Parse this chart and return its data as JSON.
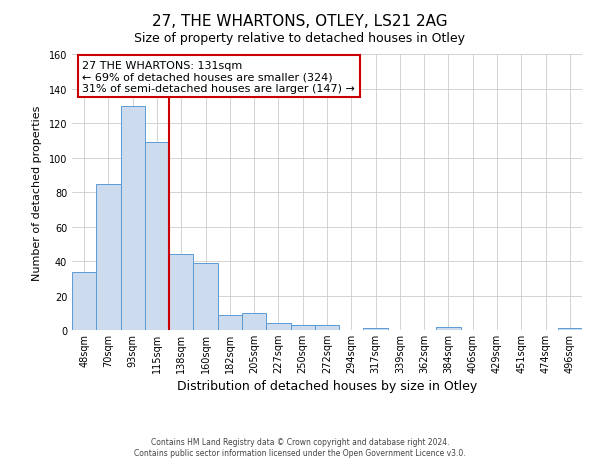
{
  "title": "27, THE WHARTONS, OTLEY, LS21 2AG",
  "subtitle": "Size of property relative to detached houses in Otley",
  "xlabel": "Distribution of detached houses by size in Otley",
  "ylabel": "Number of detached properties",
  "bin_labels": [
    "48sqm",
    "70sqm",
    "93sqm",
    "115sqm",
    "138sqm",
    "160sqm",
    "182sqm",
    "205sqm",
    "227sqm",
    "250sqm",
    "272sqm",
    "294sqm",
    "317sqm",
    "339sqm",
    "362sqm",
    "384sqm",
    "406sqm",
    "429sqm",
    "451sqm",
    "474sqm",
    "496sqm"
  ],
  "bar_values": [
    34,
    85,
    130,
    109,
    44,
    39,
    9,
    10,
    4,
    3,
    3,
    0,
    1,
    0,
    0,
    2,
    0,
    0,
    0,
    0,
    1
  ],
  "bar_color": "#ccdcee",
  "bar_edge_color": "#5b9bd5",
  "property_line_label": "27 THE WHARTONS: 131sqm",
  "annotation_line1": "← 69% of detached houses are smaller (324)",
  "annotation_line2": "31% of semi-detached houses are larger (147) →",
  "annotation_box_color": "#ffffff",
  "annotation_box_edge_color": "#cc0000",
  "vline_color": "#cc0000",
  "vline_x": 4.0,
  "ylim": [
    0,
    160
  ],
  "yticks": [
    0,
    20,
    40,
    60,
    80,
    100,
    120,
    140,
    160
  ],
  "footer_line1": "Contains HM Land Registry data © Crown copyright and database right 2024.",
  "footer_line2": "Contains public sector information licensed under the Open Government Licence v3.0.",
  "background_color": "#ffffff",
  "grid_color": "#cccccc",
  "title_fontsize": 11,
  "subtitle_fontsize": 9,
  "xlabel_fontsize": 9,
  "ylabel_fontsize": 8,
  "tick_fontsize": 7,
  "annotation_fontsize": 8
}
